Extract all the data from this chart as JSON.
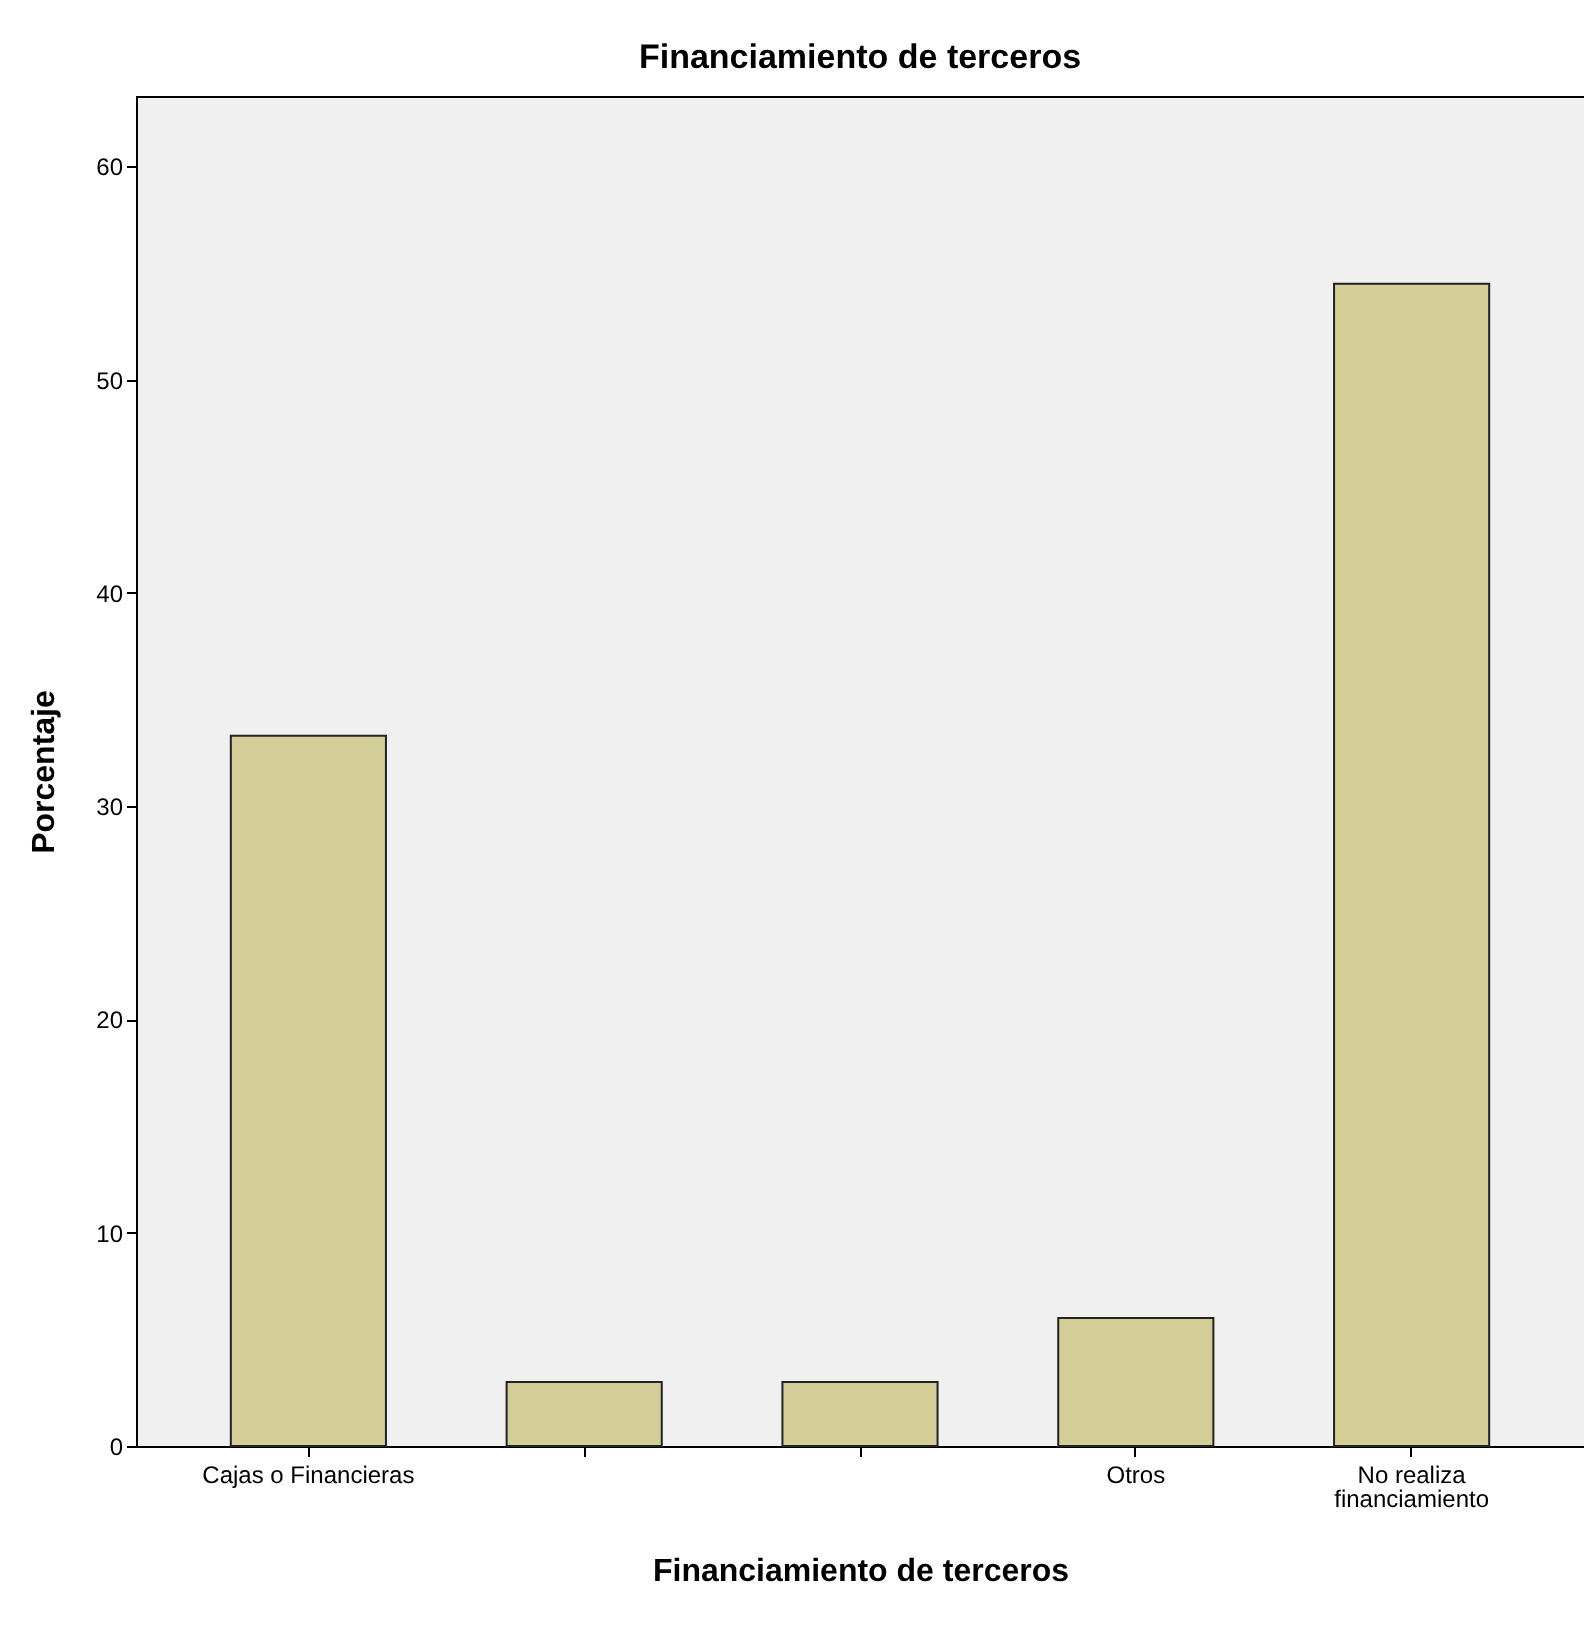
{
  "chart_data": {
    "type": "bar",
    "title": "Financiamiento de terceros",
    "xlabel": "Financiamiento de terceros",
    "ylabel": "Porcentaje",
    "categories": [
      "Cajas o Financieras",
      null,
      null,
      "Otros",
      "No realiza financiamiento"
    ],
    "values": [
      33.3,
      3.0,
      3.0,
      6.0,
      54.5
    ],
    "color": "#d3ce97",
    "ylim": [
      0,
      63.3
    ],
    "yticks": [
      0,
      10,
      20,
      30,
      40,
      50,
      60
    ],
    "grid": false
  }
}
